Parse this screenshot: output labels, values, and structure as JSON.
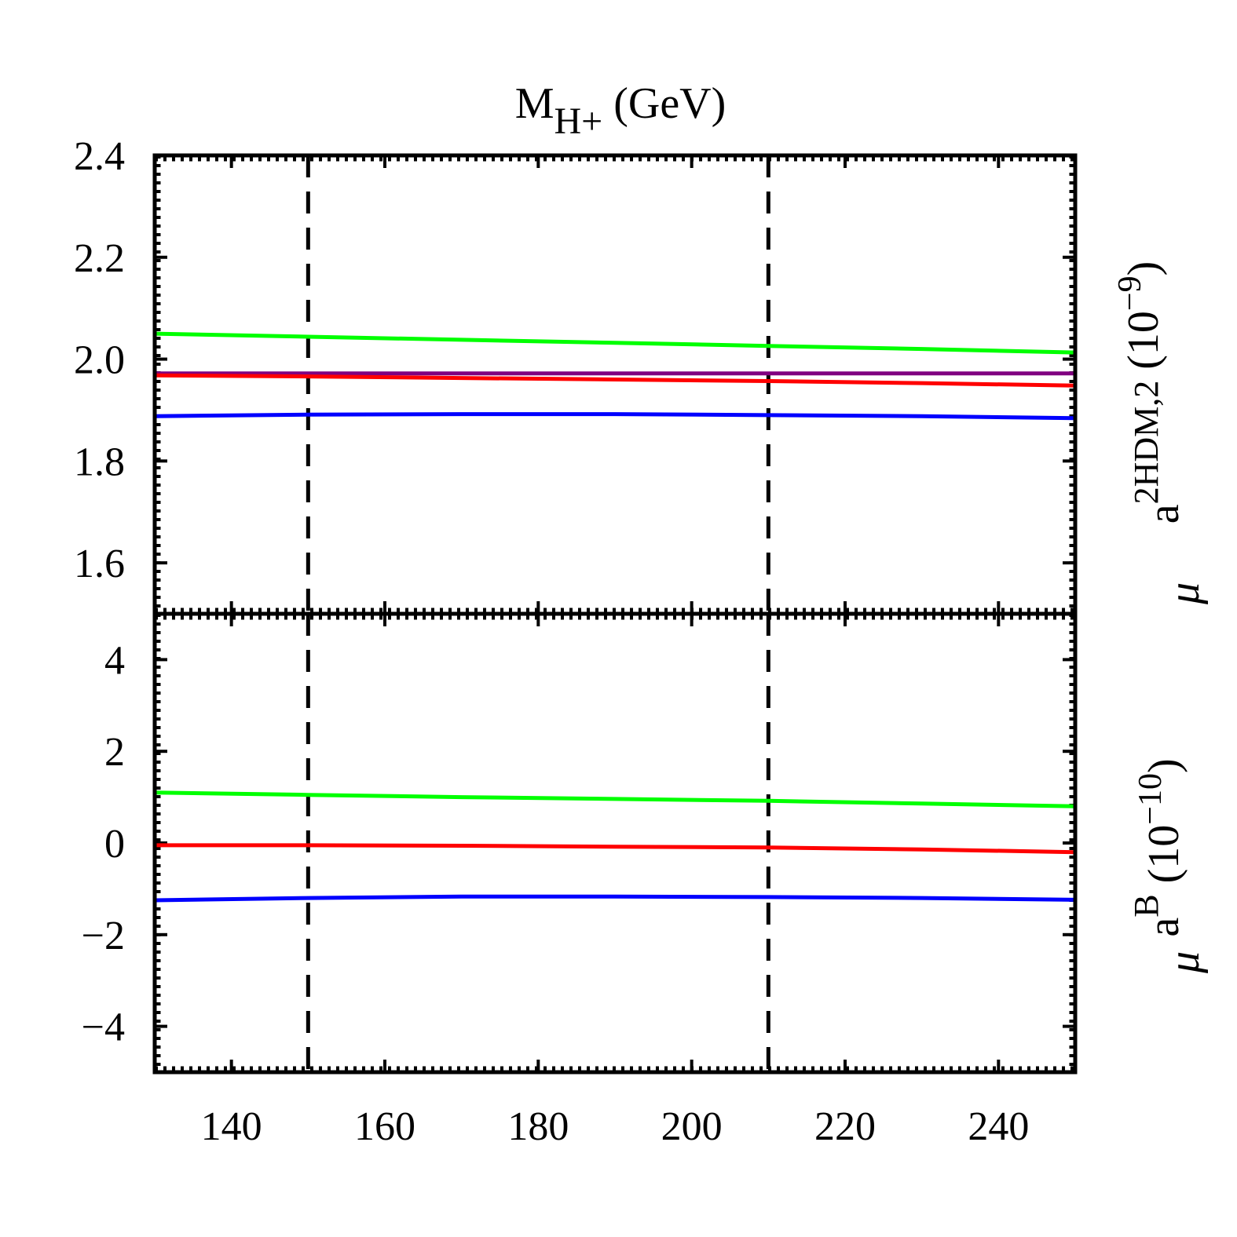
{
  "chart_data": [
    {
      "panel": "top",
      "type": "line",
      "title_main": "M",
      "title_sub": "H+",
      "title_unit": "(GeV)",
      "ylabel_base": "a",
      "ylabel_sub": "μ",
      "ylabel_sup": "2HDM,2",
      "ylabel_unit_open": "(10",
      "ylabel_unit_exp": "−9",
      "ylabel_unit_close": ")",
      "xlim": [
        130,
        250
      ],
      "ylim": [
        1.5,
        2.4
      ],
      "yticks": [
        1.6,
        1.8,
        2.0,
        2.2,
        2.4
      ],
      "ytick_labels": [
        "1.6",
        "1.8",
        "2.0",
        "2.2",
        "2.4"
      ],
      "vlines": [
        150,
        210
      ],
      "x": [
        130,
        150,
        170,
        190,
        210,
        230,
        250
      ],
      "series": [
        {
          "name": "green",
          "color": "#00ff00",
          "values": [
            2.05,
            2.044,
            2.038,
            2.032,
            2.026,
            2.02,
            2.013
          ]
        },
        {
          "name": "purple",
          "color": "#800080",
          "values": [
            1.972,
            1.972,
            1.972,
            1.972,
            1.972,
            1.972,
            1.972
          ]
        },
        {
          "name": "red",
          "color": "#ff0000",
          "values": [
            1.968,
            1.966,
            1.963,
            1.96,
            1.957,
            1.953,
            1.948
          ]
        },
        {
          "name": "blue",
          "color": "#0000ff",
          "values": [
            1.888,
            1.891,
            1.892,
            1.892,
            1.89,
            1.888,
            1.884
          ]
        }
      ]
    },
    {
      "panel": "bottom",
      "type": "line",
      "xlabel": "",
      "ylabel_base": "a",
      "ylabel_sub": "μ",
      "ylabel_sup": "B",
      "ylabel_unit_open": "(10",
      "ylabel_unit_exp": "−10",
      "ylabel_unit_close": ")",
      "xlim": [
        130,
        250
      ],
      "ylim": [
        -5,
        5
      ],
      "xticks": [
        140,
        160,
        180,
        200,
        220,
        240
      ],
      "xtick_labels": [
        "140",
        "160",
        "180",
        "200",
        "220",
        "240"
      ],
      "yticks": [
        -4,
        -2,
        0,
        2,
        4
      ],
      "ytick_labels": [
        "−4",
        "−2",
        "0",
        "2",
        "4"
      ],
      "vlines": [
        150,
        210
      ],
      "x": [
        130,
        150,
        170,
        190,
        210,
        230,
        250
      ],
      "series": [
        {
          "name": "green",
          "color": "#00ff00",
          "values": [
            1.1,
            1.05,
            1.0,
            0.96,
            0.92,
            0.86,
            0.8
          ]
        },
        {
          "name": "red",
          "color": "#ff0000",
          "values": [
            -0.05,
            -0.05,
            -0.06,
            -0.08,
            -0.1,
            -0.14,
            -0.2
          ]
        },
        {
          "name": "blue",
          "color": "#0000ff",
          "values": [
            -1.25,
            -1.2,
            -1.17,
            -1.17,
            -1.18,
            -1.2,
            -1.24
          ]
        }
      ]
    }
  ]
}
